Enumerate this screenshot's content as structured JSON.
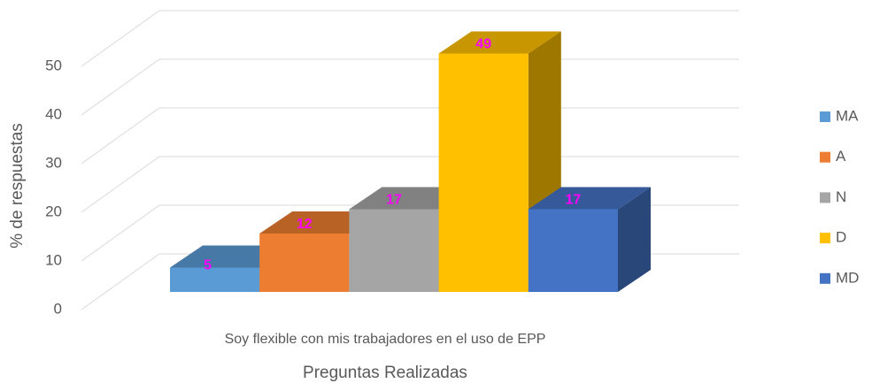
{
  "chart_data": {
    "type": "bar3d",
    "categories": [
      "Soy flexible con mis trabajadores en el uso de EPP"
    ],
    "series": [
      {
        "name": "MA",
        "color": "#5b9bd5",
        "values": [
          5
        ]
      },
      {
        "name": "A",
        "color": "#ed7d31",
        "values": [
          12
        ]
      },
      {
        "name": "N",
        "color": "#a5a5a5",
        "values": [
          17
        ]
      },
      {
        "name": "D",
        "color": "#ffc000",
        "values": [
          49
        ]
      },
      {
        "name": "MD",
        "color": "#4472c4",
        "values": [
          17
        ]
      }
    ],
    "x_label": "Preguntas Realizadas",
    "y_label": "% de respuestas",
    "ylim": [
      0,
      50
    ],
    "yticks": [
      0,
      10,
      20,
      30,
      40,
      50
    ],
    "grid": true,
    "legend": "right",
    "label_color": "#ff00ff"
  }
}
